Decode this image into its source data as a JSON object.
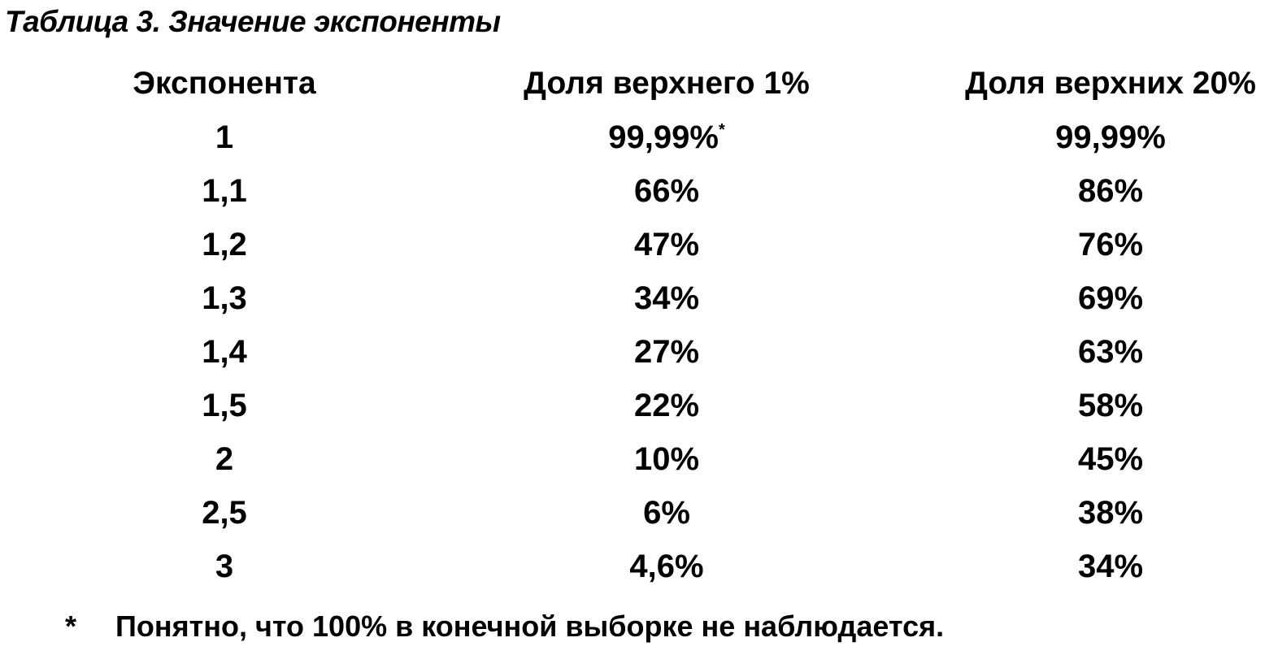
{
  "caption": "Таблица 3. Значение экспоненты",
  "table": {
    "headers": [
      "Экспонента",
      "Доля верхнего 1%",
      "Доля верхних 20%"
    ],
    "rows": [
      {
        "exp": "1",
        "top1": "99,99%",
        "top1_mark": "*",
        "top20": "99,99%"
      },
      {
        "exp": "1,1",
        "top1": "66%",
        "top1_mark": "",
        "top20": "86%"
      },
      {
        "exp": "1,2",
        "top1": "47%",
        "top1_mark": "",
        "top20": "76%"
      },
      {
        "exp": "1,3",
        "top1": "34%",
        "top1_mark": "",
        "top20": "69%"
      },
      {
        "exp": "1,4",
        "top1": "27%",
        "top1_mark": "",
        "top20": "63%"
      },
      {
        "exp": "1,5",
        "top1": "22%",
        "top1_mark": "",
        "top20": "58%"
      },
      {
        "exp": "2",
        "top1": "10%",
        "top1_mark": "",
        "top20": "45%"
      },
      {
        "exp": "2,5",
        "top1": "6%",
        "top1_mark": "",
        "top20": "38%"
      },
      {
        "exp": "3",
        "top1": "4,6%",
        "top1_mark": "",
        "top20": "34%"
      }
    ]
  },
  "footnote": {
    "marker": "*",
    "text": "Понятно, что 100% в конечной выборке не наблюдается."
  }
}
